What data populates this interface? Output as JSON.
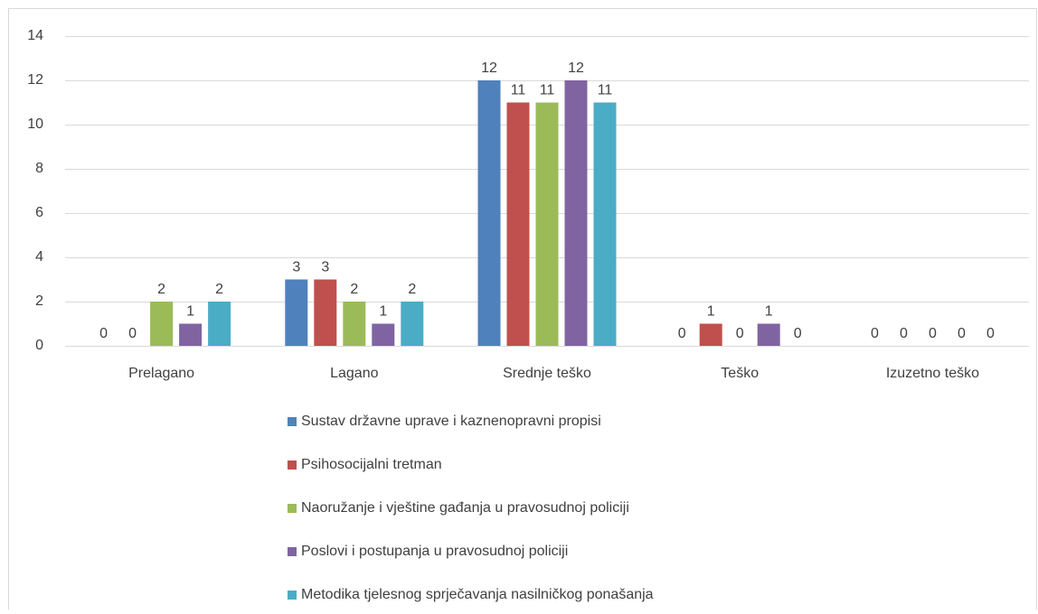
{
  "chart_data": {
    "type": "bar",
    "categories": [
      "Prelagano",
      "Lagano",
      "Srednje teško",
      "Teško",
      "Izuzetno teško"
    ],
    "series": [
      {
        "name": "Sustav državne uprave i kaznenopravni propisi",
        "color": "#4f81bd",
        "values": [
          0,
          3,
          12,
          0,
          0
        ]
      },
      {
        "name": "Psihosocijalni tretman",
        "color": "#c0504d",
        "values": [
          0,
          3,
          11,
          1,
          0
        ]
      },
      {
        "name": "Naoružanje i vještine gađanja u pravosudnoj policiji",
        "color": "#9bbb59",
        "values": [
          2,
          2,
          11,
          0,
          0
        ]
      },
      {
        "name": "Poslovi i postupanja u pravosudnoj policiji",
        "color": "#8064a2",
        "values": [
          1,
          1,
          12,
          1,
          0
        ]
      },
      {
        "name": "Metodika tjelesnog sprječavanja nasilničkog ponašanja",
        "color": "#4bacc6",
        "values": [
          2,
          2,
          11,
          0,
          0
        ]
      }
    ],
    "ylim": [
      0,
      14
    ],
    "yticks": [
      0,
      2,
      4,
      6,
      8,
      10,
      12,
      14
    ],
    "grid": true,
    "legend": "bottom"
  }
}
